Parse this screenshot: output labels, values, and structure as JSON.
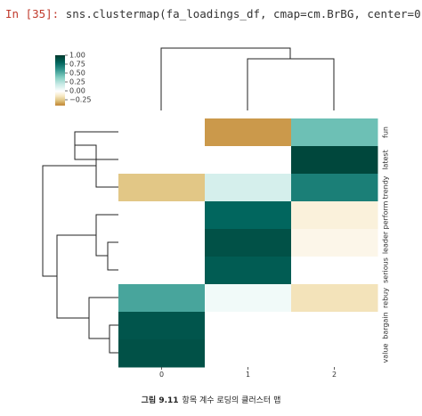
{
  "code": {
    "prompt": "In [35]:",
    "text": "sns.clustermap(fa_loadings_df, cmap=cm.BrBG, center=0)"
  },
  "caption": {
    "fig_num": "그림 9.11",
    "text": "항목 계수 로딩의 클러스터 맵"
  },
  "chart_data": {
    "type": "heatmap",
    "title": "",
    "xlabel": "",
    "ylabel": "",
    "colormap": "BrBG",
    "center": 0,
    "colorbar": {
      "ticks": [
        1.0,
        0.75,
        0.5,
        0.25,
        0.0,
        -0.25
      ],
      "tick_labels": [
        "1.00",
        "0.75",
        "0.50",
        "0.25",
        "0.00",
        "−0.25"
      ],
      "range": [
        -0.4,
        1.0
      ]
    },
    "columns": [
      "0",
      "1",
      "2"
    ],
    "rows": [
      "fun",
      "latest",
      "trendy",
      "perform",
      "leader",
      "serious",
      "rebuy",
      "bargain",
      "value"
    ],
    "values": [
      [
        0.0,
        -0.35,
        0.45
      ],
      [
        0.0,
        0.0,
        0.95
      ],
      [
        -0.25,
        0.15,
        0.7
      ],
      [
        0.0,
        0.8,
        -0.08
      ],
      [
        0.0,
        0.9,
        -0.05
      ],
      [
        0.0,
        0.85,
        0.0
      ],
      [
        0.55,
        0.05,
        -0.15
      ],
      [
        0.88,
        0.0,
        0.0
      ],
      [
        0.9,
        0.0,
        0.0
      ]
    ]
  }
}
